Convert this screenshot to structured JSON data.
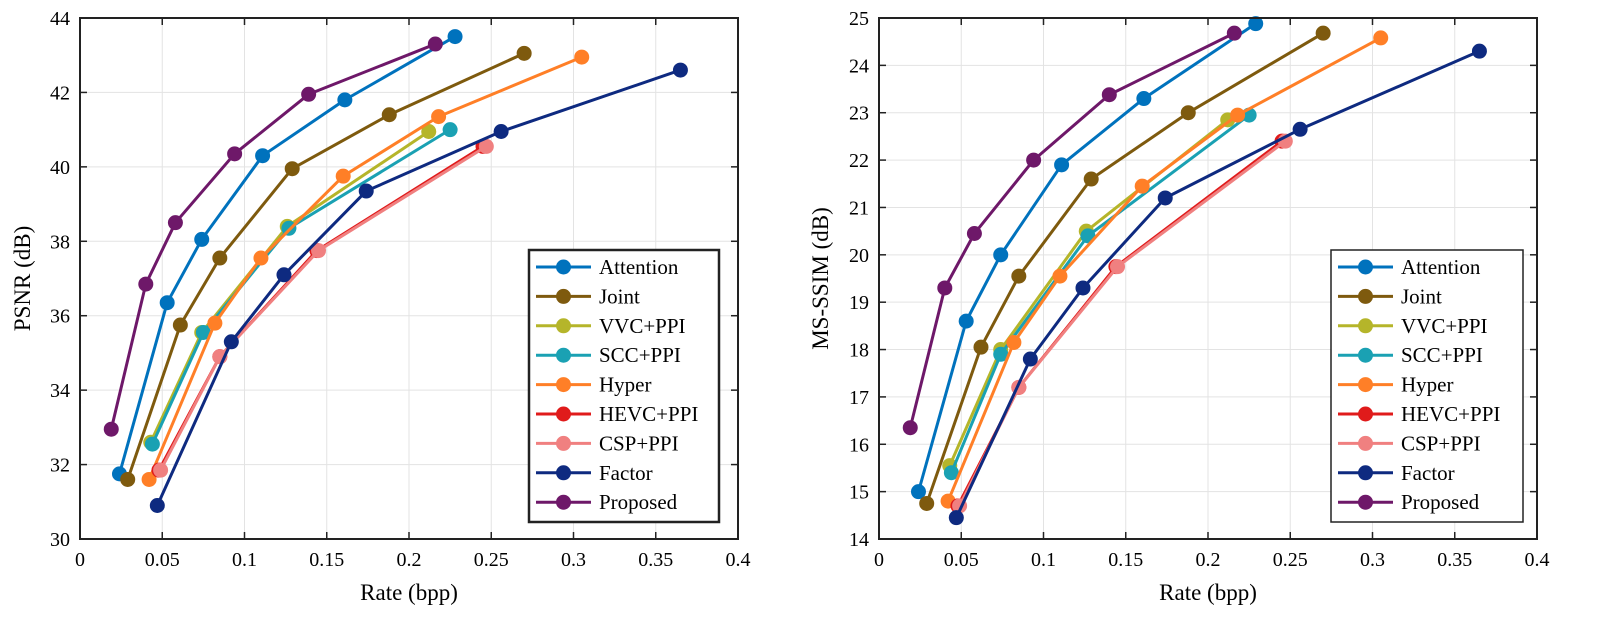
{
  "chart_data": [
    {
      "type": "line",
      "title": "",
      "xlabel": "Rate (bpp)",
      "ylabel": "PSNR (dB)",
      "xlim": [
        0,
        0.4
      ],
      "ylim": [
        30,
        44
      ],
      "xticks": [
        0,
        0.05,
        0.1,
        0.15,
        0.2,
        0.25,
        0.3,
        0.35,
        0.4
      ],
      "xtick_labels": [
        "0",
        "0.05",
        "0.1",
        "0.15",
        "0.2",
        "0.25",
        "0.3",
        "0.35",
        "0.4"
      ],
      "yticks": [
        30,
        32,
        34,
        36,
        38,
        40,
        42,
        44
      ],
      "ytick_labels": [
        "30",
        "32",
        "34",
        "36",
        "38",
        "40",
        "42",
        "44"
      ],
      "grid": true,
      "legend": "bottom-right",
      "series": [
        {
          "name": "Attention",
          "color": "#0072BD",
          "x": [
            0.024,
            0.053,
            0.074,
            0.111,
            0.161,
            0.228
          ],
          "y": [
            31.75,
            36.35,
            38.05,
            40.3,
            41.8,
            43.5
          ]
        },
        {
          "name": "Joint",
          "color": "#7E5A0E",
          "x": [
            0.029,
            0.061,
            0.085,
            0.129,
            0.188,
            0.27
          ],
          "y": [
            31.6,
            35.75,
            37.55,
            39.95,
            41.4,
            43.05
          ]
        },
        {
          "name": "VVC+PPI",
          "color": "#B5B52A",
          "x": [
            0.043,
            0.074,
            0.126,
            0.212
          ],
          "y": [
            32.6,
            35.55,
            38.4,
            40.95
          ]
        },
        {
          "name": "SCC+PPI",
          "color": "#1AA1B3",
          "x": [
            0.044,
            0.075,
            0.127,
            0.225
          ],
          "y": [
            32.55,
            35.55,
            38.35,
            41.0
          ]
        },
        {
          "name": "Hyper",
          "color": "#FF7F27",
          "x": [
            0.042,
            0.082,
            0.11,
            0.16,
            0.218,
            0.305
          ],
          "y": [
            31.6,
            35.8,
            37.55,
            39.75,
            41.35,
            42.95
          ]
        },
        {
          "name": "HEVC+PPI",
          "color": "#E01B1B",
          "x": [
            0.048,
            0.085,
            0.144,
            0.245
          ],
          "y": [
            31.85,
            34.9,
            37.75,
            40.55
          ]
        },
        {
          "name": "CSP+PPI",
          "color": "#F08080",
          "x": [
            0.049,
            0.085,
            0.145,
            0.247
          ],
          "y": [
            31.85,
            34.9,
            37.75,
            40.55
          ]
        },
        {
          "name": "Factor",
          "color": "#0E2A80",
          "x": [
            0.047,
            0.092,
            0.124,
            0.174,
            0.256,
            0.365
          ],
          "y": [
            30.9,
            35.3,
            37.1,
            39.35,
            40.95,
            42.6
          ]
        },
        {
          "name": "Proposed",
          "color": "#6E1869",
          "x": [
            0.019,
            0.04,
            0.058,
            0.094,
            0.139,
            0.216
          ],
          "y": [
            32.95,
            36.85,
            38.5,
            40.35,
            41.95,
            43.3
          ]
        }
      ]
    },
    {
      "type": "line",
      "title": "",
      "xlabel": "Rate (bpp)",
      "ylabel": "MS-SSIM (dB)",
      "xlim": [
        0,
        0.4
      ],
      "ylim": [
        14,
        25
      ],
      "xticks": [
        0,
        0.05,
        0.1,
        0.15,
        0.2,
        0.25,
        0.3,
        0.35,
        0.4
      ],
      "xtick_labels": [
        "0",
        "0.05",
        "0.1",
        "0.15",
        "0.2",
        "0.25",
        "0.3",
        "0.35",
        "0.4"
      ],
      "yticks": [
        14,
        15,
        16,
        17,
        18,
        19,
        20,
        21,
        22,
        23,
        24,
        25
      ],
      "ytick_labels": [
        "14",
        "15",
        "16",
        "17",
        "18",
        "19",
        "20",
        "21",
        "22",
        "23",
        "24",
        "25"
      ],
      "grid": true,
      "legend": "bottom-right",
      "series": [
        {
          "name": "Attention",
          "color": "#0072BD",
          "x": [
            0.024,
            0.053,
            0.074,
            0.111,
            0.161,
            0.229
          ],
          "y": [
            15.0,
            18.6,
            20.0,
            21.9,
            23.3,
            24.88
          ]
        },
        {
          "name": "Joint",
          "color": "#7E5A0E",
          "x": [
            0.029,
            0.062,
            0.085,
            0.129,
            0.188,
            0.27
          ],
          "y": [
            14.75,
            18.05,
            19.55,
            21.6,
            23.0,
            24.68
          ]
        },
        {
          "name": "VVC+PPI",
          "color": "#B5B52A",
          "x": [
            0.043,
            0.074,
            0.126,
            0.212
          ],
          "y": [
            15.55,
            18.0,
            20.5,
            22.85
          ]
        },
        {
          "name": "SCC+PPI",
          "color": "#1AA1B3",
          "x": [
            0.044,
            0.074,
            0.127,
            0.225
          ],
          "y": [
            15.4,
            17.9,
            20.4,
            22.95
          ]
        },
        {
          "name": "Hyper",
          "color": "#FF7F27",
          "x": [
            0.042,
            0.082,
            0.11,
            0.16,
            0.218,
            0.305
          ],
          "y": [
            14.8,
            18.15,
            19.55,
            21.45,
            22.95,
            24.58
          ]
        },
        {
          "name": "HEVC+PPI",
          "color": "#E01B1B",
          "x": [
            0.048,
            0.085,
            0.144,
            0.245
          ],
          "y": [
            14.7,
            17.2,
            19.75,
            22.4
          ]
        },
        {
          "name": "CSP+PPI",
          "color": "#F08080",
          "x": [
            0.049,
            0.085,
            0.145,
            0.247
          ],
          "y": [
            14.7,
            17.2,
            19.75,
            22.4
          ]
        },
        {
          "name": "Factor",
          "color": "#0E2A80",
          "x": [
            0.047,
            0.092,
            0.124,
            0.174,
            0.256,
            0.365
          ],
          "y": [
            14.45,
            17.8,
            19.3,
            21.2,
            22.65,
            24.3
          ]
        },
        {
          "name": "Proposed",
          "color": "#6E1869",
          "x": [
            0.019,
            0.04,
            0.058,
            0.094,
            0.14,
            0.216
          ],
          "y": [
            16.35,
            19.3,
            20.45,
            22.0,
            23.38,
            24.68
          ]
        }
      ]
    }
  ]
}
